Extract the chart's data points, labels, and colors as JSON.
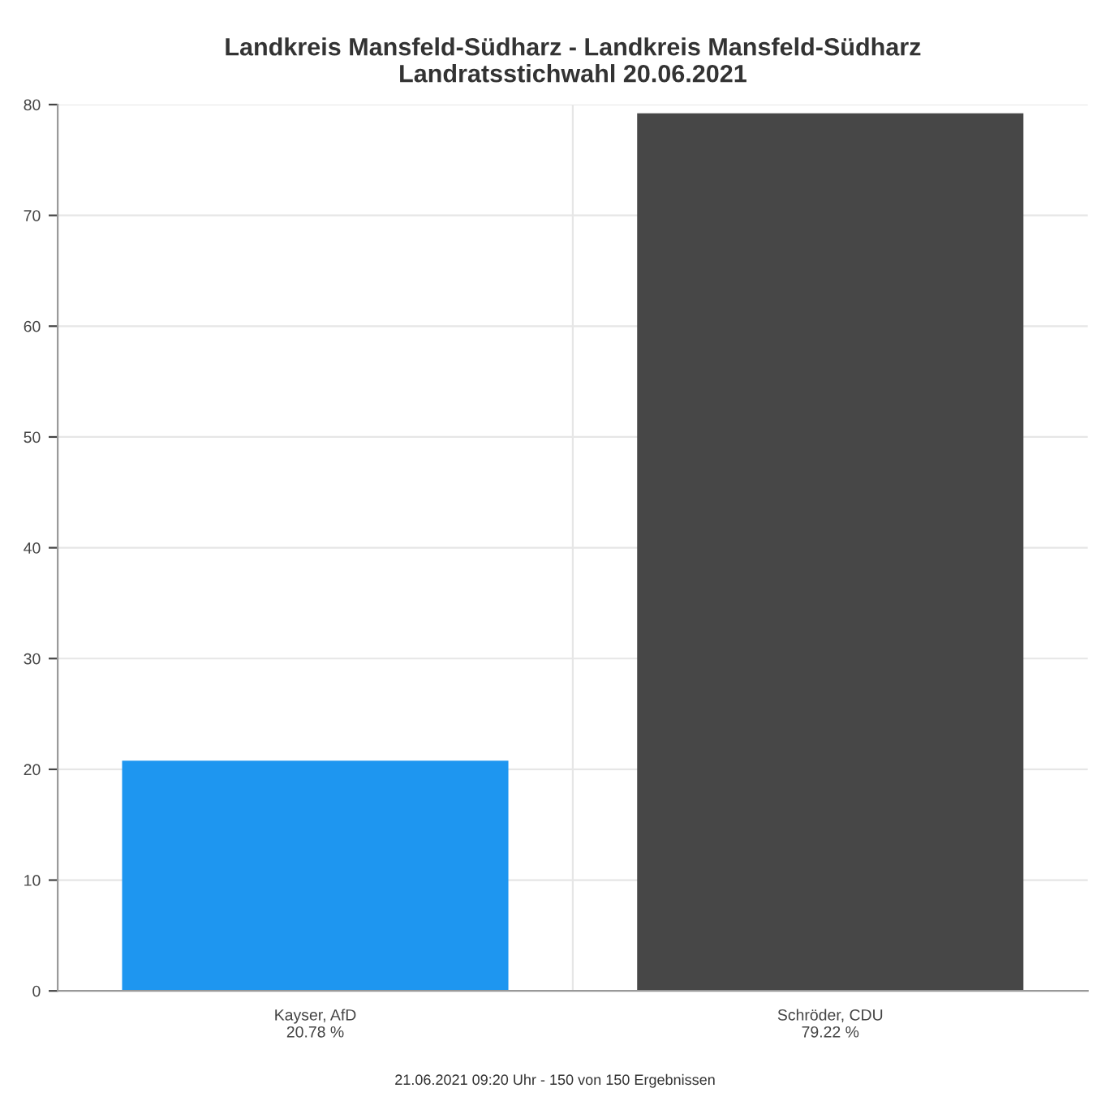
{
  "chart_data": {
    "type": "bar",
    "title": "Landkreis Mansfeld-Südharz - Landkreis Mansfeld-Südharz\nLandratsstichwahl 20.06.2021",
    "categories": [
      "Kayser, AfD",
      "Schröder, CDU"
    ],
    "values": [
      20.78,
      79.22
    ],
    "value_labels": [
      "20.78 %",
      "79.22 %"
    ],
    "colors": [
      "#1e96f0",
      "#474747"
    ],
    "ylim": [
      0,
      80
    ],
    "yticks": [
      0,
      10,
      20,
      30,
      40,
      50,
      60,
      70,
      80
    ],
    "grid": true,
    "legend": false,
    "annotations": [
      "21.06.2021 09:20 Uhr - 150 von 150 Ergebnissen"
    ]
  }
}
